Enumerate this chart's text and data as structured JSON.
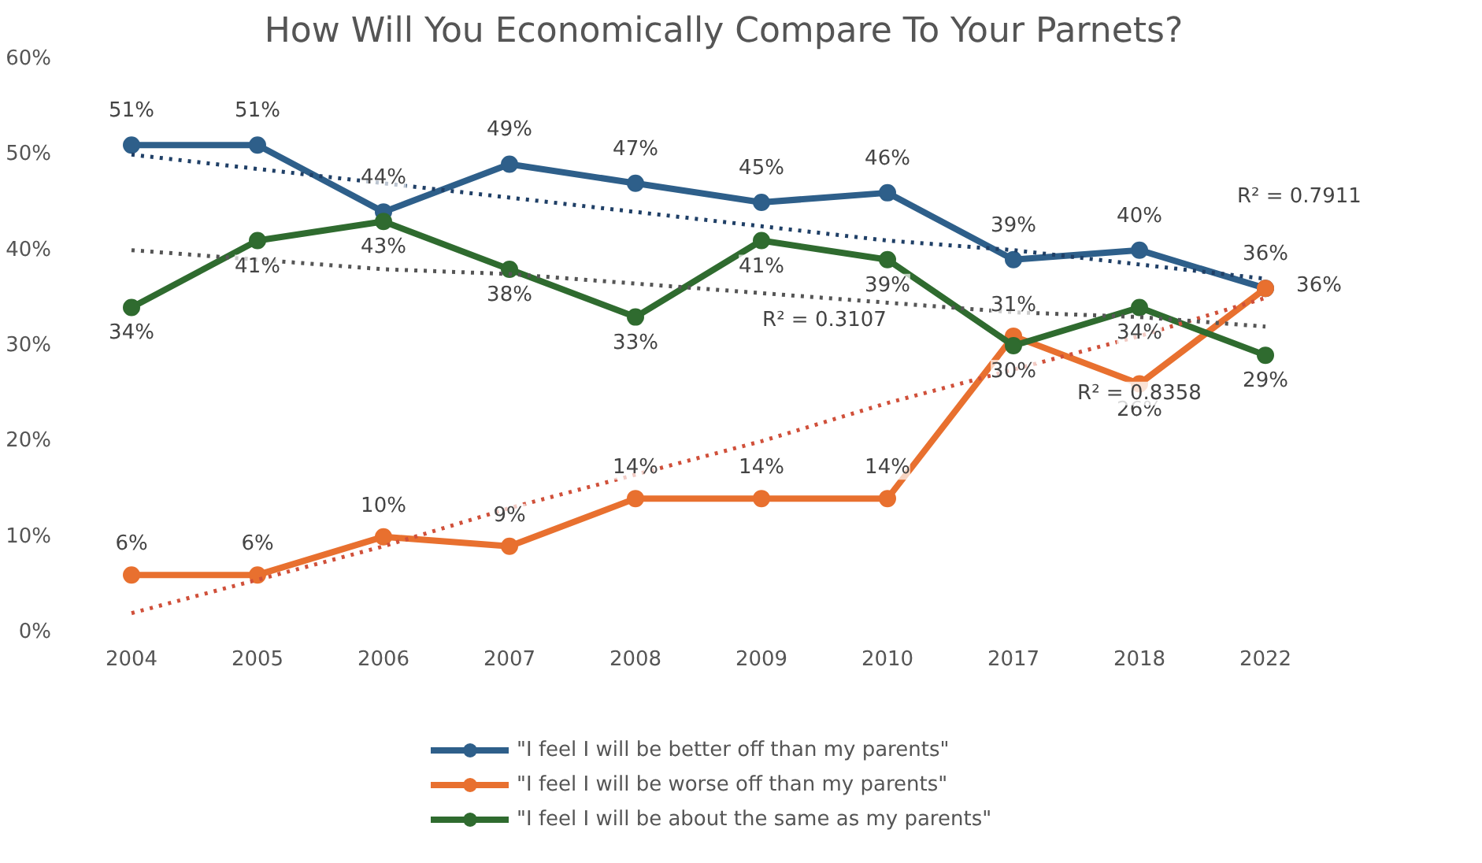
{
  "chart_data": {
    "type": "line",
    "title": "How Will You Economically Compare To Your Parnets?",
    "categories": [
      "2004",
      "2005",
      "2006",
      "2007",
      "2008",
      "2009",
      "2010",
      "2017",
      "2018",
      "2022"
    ],
    "series": [
      {
        "name": "\"I feel I will be better off than my parents\"",
        "color": "#2e5f8a",
        "values": [
          51,
          51,
          44,
          49,
          47,
          45,
          46,
          39,
          40,
          36
        ],
        "value_labels": [
          "51%",
          "51%",
          "44%",
          "49%",
          "47%",
          "45%",
          "46%",
          "39%",
          "40%",
          "36%"
        ]
      },
      {
        "name": "\"I feel I will be worse off than my parents\"",
        "color": "#e8702f",
        "values": [
          6,
          6,
          10,
          9,
          14,
          14,
          14,
          31,
          26,
          36
        ],
        "value_labels": [
          "6%",
          "6%",
          "10%",
          "9%",
          "14%",
          "14%",
          "14%",
          "31%",
          "26%",
          "36%"
        ]
      },
      {
        "name": "\"I feel I will be about the same as my parents\"",
        "color": "#2f6b2f",
        "values": [
          34,
          41,
          43,
          38,
          33,
          41,
          39,
          30,
          34,
          29
        ],
        "value_labels": [
          "34%",
          "41%",
          "43%",
          "38%",
          "33%",
          "41%",
          "39%",
          "30%",
          "34%",
          "29%"
        ]
      },
      {
        "type": "line",
        "color": "#1f3f66",
        "line_style": "dotted",
        "marker": "none",
        "values": [
          50,
          48.5,
          47,
          45.5,
          44,
          42.5,
          41,
          40,
          38.5,
          37
        ]
      },
      {
        "type": "line",
        "color": "#d0503a",
        "line_style": "dotted",
        "marker": "none",
        "values": [
          2,
          5.5,
          9,
          13,
          16.5,
          20,
          24,
          27.5,
          31,
          35
        ]
      },
      {
        "type": "line",
        "color": "#555555",
        "line_style": "dotted",
        "marker": "none",
        "values": [
          40,
          39,
          38,
          37.5,
          36.5,
          35.5,
          34.5,
          33.5,
          33,
          32
        ]
      }
    ],
    "ylim": [
      0,
      60
    ],
    "yticks": [
      {
        "value": 0,
        "label": "0%"
      },
      {
        "value": 10,
        "label": "10%"
      },
      {
        "value": 20,
        "label": "20%"
      },
      {
        "value": 30,
        "label": "30%"
      },
      {
        "value": 40,
        "label": "40%"
      },
      {
        "value": 50,
        "label": "50%"
      },
      {
        "value": 60,
        "label": "60%"
      }
    ],
    "annotations": [
      "R² = 0.7911",
      "R² = 0.8358",
      "R² = 0.3107"
    ],
    "marker": "circle",
    "line_style": "solid",
    "grid": false,
    "legend": "bottom"
  }
}
